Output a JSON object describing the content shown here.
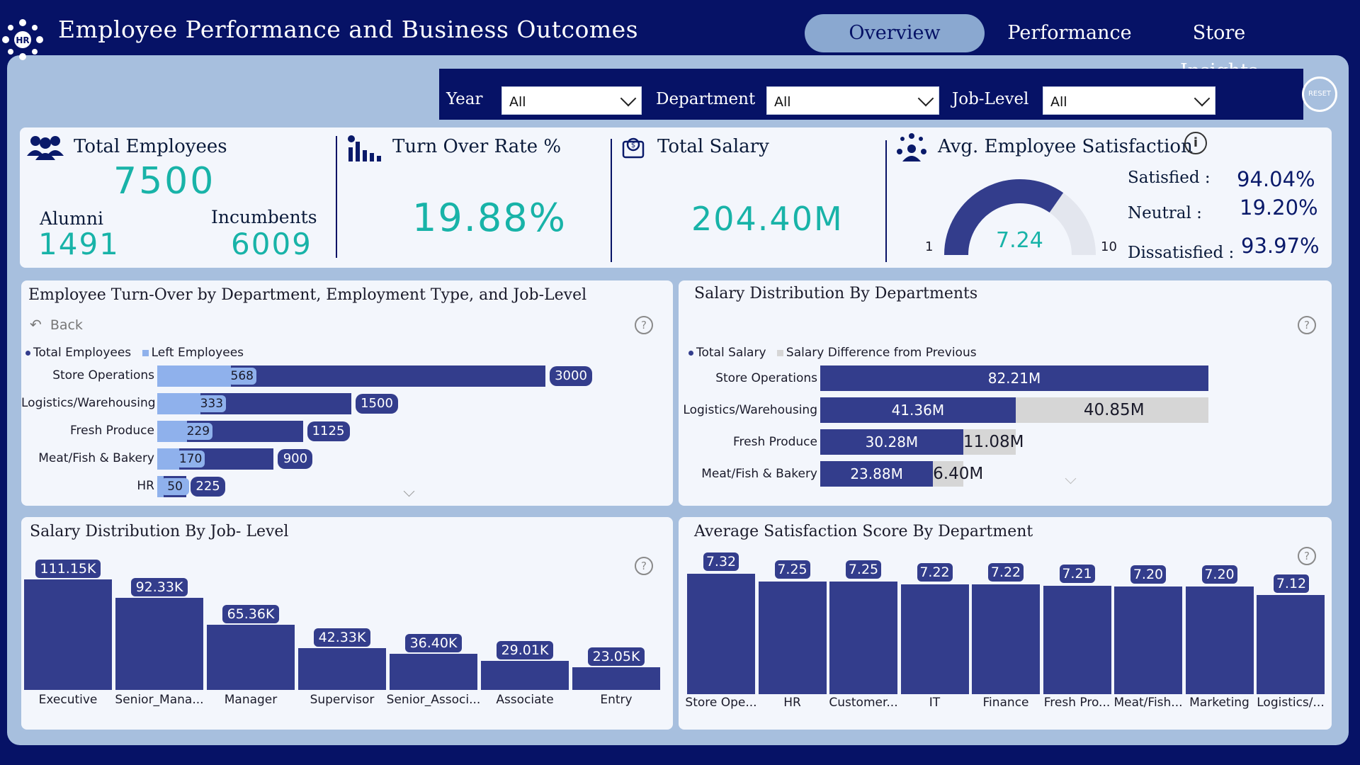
{
  "header": {
    "title": "Employee Performance and Business Outcomes",
    "logo_text": "HR",
    "tabs": [
      {
        "label": "Overview",
        "active": true
      },
      {
        "label": "Performance",
        "active": false
      },
      {
        "label": "Store Insights",
        "active": false
      }
    ]
  },
  "filters": {
    "year_label": "Year",
    "year_value": "All",
    "department_label": "Department",
    "department_value": "All",
    "joblevel_label": "Job-Level",
    "joblevel_value": "All",
    "reset_label": "RESET"
  },
  "kpis": {
    "total_employees_title": "Total Employees",
    "total_employees_value": "7500",
    "alumni_label": "Alumni",
    "alumni_value": "1491",
    "incumbents_label": "Incumbents",
    "incumbents_value": "6009",
    "turnover_title": "Turn Over Rate %",
    "turnover_value": "19.88%",
    "salary_title": "Total Salary",
    "salary_value": "204.40M",
    "satisfaction_title": "Avg. Employee Satisfaction",
    "gauge_value": "7.24",
    "gauge_min": "1",
    "gauge_max": "10",
    "satisfied_label": "Satisfied :",
    "satisfied_value": "94.04%",
    "neutral_label": "Neutral :",
    "neutral_value": "19.20%",
    "dissatisfied_label": "Dissatisfied :",
    "dissatisfied_value": "93.97%"
  },
  "turnover_card": {
    "title": "Employee Turn-Over by Department, Employment Type, and Job-Level",
    "back_label": "Back",
    "legend_total": "Total Employees",
    "legend_left": "Left Employees"
  },
  "salary_dept_card": {
    "title": "Salary Distribution By Departments",
    "legend_total": "Total Salary",
    "legend_diff": "Salary Difference from Previous"
  },
  "salary_level_card": {
    "title": "Salary Distribution By Job- Level"
  },
  "satisfaction_dept_card": {
    "title": "Average Satisfaction Score By Department"
  },
  "colors": {
    "navy": "#061266",
    "bar": "#333d8c",
    "light_bar": "#8fb1ec",
    "teal": "#18b3a8",
    "gray_bar": "#d6d6d6"
  },
  "chart_data": [
    {
      "type": "bar",
      "orientation": "horizontal",
      "title": "Employee Turn-Over by Department, Employment Type, and Job-Level",
      "categories": [
        "Store Operations",
        "Logistics/Warehousing",
        "Fresh Produce",
        "Meat/Fish & Bakery",
        "HR"
      ],
      "series": [
        {
          "name": "Total Employees",
          "values": [
            3000,
            1500,
            1125,
            900,
            225
          ]
        },
        {
          "name": "Left Employees",
          "values": [
            568,
            333,
            229,
            170,
            50
          ]
        }
      ],
      "legend": "top-left"
    },
    {
      "type": "bar",
      "orientation": "horizontal",
      "title": "Salary Distribution By Departments",
      "categories": [
        "Store Operations",
        "Logistics/Warehousing",
        "Fresh Produce",
        "Meat/Fish & Bakery"
      ],
      "series": [
        {
          "name": "Total Salary",
          "values": [
            82.21,
            41.36,
            30.28,
            23.88
          ],
          "labels": [
            "82.21M",
            "41.36M",
            "30.28M",
            "23.88M"
          ]
        },
        {
          "name": "Salary Difference from Previous",
          "values": [
            null,
            40.85,
            11.08,
            6.4
          ],
          "labels": [
            "",
            "40.85M",
            "11.08M",
            "6.40M"
          ]
        }
      ],
      "legend": "top-left"
    },
    {
      "type": "bar",
      "title": "Salary Distribution By Job- Level",
      "categories": [
        "Executive",
        "Senior_Mana...",
        "Manager",
        "Supervisor",
        "Senior_Associ...",
        "Associate",
        "Entry"
      ],
      "values": [
        111.15,
        92.33,
        65.36,
        42.33,
        36.4,
        29.01,
        23.05
      ],
      "labels": [
        "111.15K",
        "92.33K",
        "65.36K",
        "42.33K",
        "36.40K",
        "29.01K",
        "23.05K"
      ]
    },
    {
      "type": "bar",
      "title": "Average Satisfaction Score By Department",
      "categories": [
        "Store Ope...",
        "HR",
        "Customer...",
        "IT",
        "Finance",
        "Fresh Pro...",
        "Meat/Fish...",
        "Marketing",
        "Logistics/..."
      ],
      "values": [
        7.32,
        7.25,
        7.25,
        7.22,
        7.22,
        7.21,
        7.2,
        7.2,
        7.12
      ],
      "labels": [
        "7.32",
        "7.25",
        "7.25",
        "7.22",
        "7.22",
        "7.21",
        "7.20",
        "7.20",
        "7.12"
      ]
    }
  ]
}
